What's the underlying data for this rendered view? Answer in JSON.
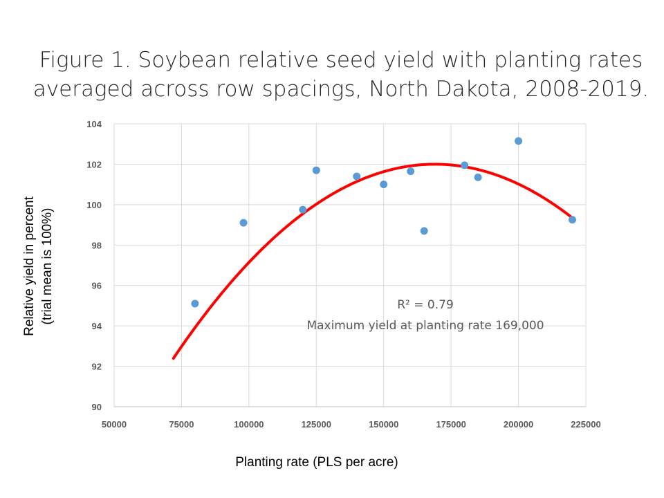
{
  "title_line1": "Figure 1. Soybean relative seed yield with planting rates",
  "title_line2": "averaged across row spacings, North Dakota, 2008-2019.",
  "ylabel_line1": "Relative yield in percent",
  "ylabel_line2": "(trial mean is 100%)",
  "xlabel": "Planting rate (PLS per acre)",
  "chart_data": {
    "type": "scatter",
    "title": "Figure 1. Soybean relative seed yield with planting rates averaged across row spacings, North Dakota, 2008-2019.",
    "xlabel": "Planting rate (PLS per acre)",
    "ylabel": "Relative yield in percent (trial mean is 100%)",
    "xlim": [
      50000,
      225000
    ],
    "ylim": [
      90,
      104
    ],
    "xticks": [
      50000,
      75000,
      100000,
      125000,
      150000,
      175000,
      200000,
      225000
    ],
    "yticks": [
      90,
      92,
      94,
      96,
      98,
      100,
      102,
      104
    ],
    "grid": true,
    "colors": {
      "points": "#5b9bd5",
      "trendline": "#ff0000",
      "grid": "#d9d9d9",
      "ticks": "#595959"
    },
    "series": [
      {
        "name": "Relative yield",
        "points": [
          {
            "x": 80000,
            "y": 95.1
          },
          {
            "x": 98000,
            "y": 99.1
          },
          {
            "x": 120000,
            "y": 99.75
          },
          {
            "x": 125000,
            "y": 101.7
          },
          {
            "x": 140000,
            "y": 101.4
          },
          {
            "x": 150000,
            "y": 101.0
          },
          {
            "x": 160000,
            "y": 101.65
          },
          {
            "x": 165000,
            "y": 98.7
          },
          {
            "x": 180000,
            "y": 101.95
          },
          {
            "x": 185000,
            "y": 101.35
          },
          {
            "x": 200000,
            "y": 103.15
          },
          {
            "x": 220000,
            "y": 99.25
          }
        ]
      }
    ],
    "trendline": {
      "type": "polynomial",
      "order": 2,
      "x_start": 72000,
      "x_end": 220000,
      "vertex_x": 169000,
      "vertex_y": 102.0,
      "coef_a": -1.021e-09
    },
    "annotations": [
      {
        "text": "R² = 0.79"
      },
      {
        "text": "Maximum yield at planting rate 169,000"
      }
    ]
  }
}
